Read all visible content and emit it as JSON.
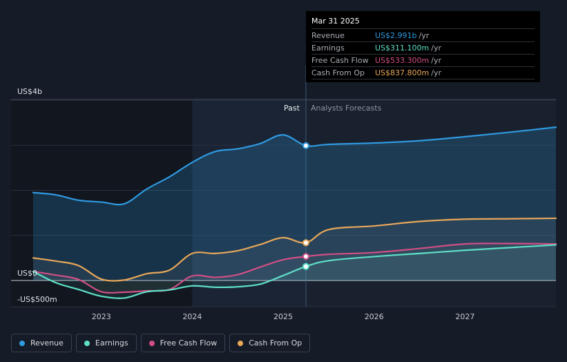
{
  "tooltip": {
    "date": "Mar 31 2025",
    "rows": [
      {
        "label": "Revenue",
        "value": "US$2.991b",
        "unit": "/yr",
        "color": "#2f9ae0"
      },
      {
        "label": "Earnings",
        "value": "US$311.100m",
        "unit": "/yr",
        "color": "#5fe0c8"
      },
      {
        "label": "Free Cash Flow",
        "value": "US$533.300m",
        "unit": "/yr",
        "color": "#d14f86"
      },
      {
        "label": "Cash From Op",
        "value": "US$837.800m",
        "unit": "/yr",
        "color": "#e8a75a"
      }
    ]
  },
  "legend": [
    {
      "label": "Revenue",
      "color": "#2f9ae0"
    },
    {
      "label": "Earnings",
      "color": "#5fe0c8"
    },
    {
      "label": "Free Cash Flow",
      "color": "#d14f86"
    },
    {
      "label": "Cash From Op",
      "color": "#e8a75a"
    }
  ],
  "chart_data": {
    "type": "line",
    "title": "",
    "xlabel": "",
    "ylabel": "",
    "ylim": [
      -500,
      4000
    ],
    "xlim": [
      2022.25,
      2028.0
    ],
    "y_tick_labels": [
      {
        "value": 4000,
        "label": "US$4b"
      },
      {
        "value": 0,
        "label": "US$0"
      },
      {
        "value": -500,
        "label": "-US$500m"
      }
    ],
    "x_ticks": [
      {
        "value": 2023,
        "label": "2023"
      },
      {
        "value": 2024,
        "label": "2024"
      },
      {
        "value": 2025,
        "label": "2025"
      },
      {
        "value": 2026,
        "label": "2026"
      },
      {
        "value": 2027,
        "label": "2027"
      }
    ],
    "divider_x": 2025.25,
    "past_label": "Past",
    "forecast_label": "Analysts Forecasts",
    "series": [
      {
        "name": "Revenue",
        "color": "#2f9ae0",
        "x": [
          2022.25,
          2022.5,
          2022.75,
          2023.0,
          2023.25,
          2023.5,
          2023.75,
          2024.0,
          2024.25,
          2024.5,
          2024.75,
          2025.0,
          2025.25,
          2025.5,
          2026.0,
          2026.5,
          2027.0,
          2027.5,
          2028.0
        ],
        "y": [
          1950,
          1900,
          1780,
          1740,
          1700,
          2030,
          2300,
          2620,
          2860,
          2920,
          3040,
          3230,
          2991,
          3020,
          3050,
          3100,
          3190,
          3290,
          3400
        ]
      },
      {
        "name": "Earnings",
        "color": "#5fe0c8",
        "x": [
          2022.25,
          2022.5,
          2022.75,
          2023.0,
          2023.25,
          2023.5,
          2023.75,
          2024.0,
          2024.25,
          2024.5,
          2024.75,
          2025.0,
          2025.25,
          2025.5,
          2026.0,
          2026.5,
          2027.0,
          2027.5,
          2028.0
        ],
        "y": [
          200,
          -50,
          -200,
          -350,
          -390,
          -250,
          -210,
          -120,
          -150,
          -140,
          -80,
          110,
          311.1,
          440,
          530,
          600,
          670,
          730,
          790
        ]
      },
      {
        "name": "Free Cash Flow",
        "color": "#d14f86",
        "x": [
          2022.25,
          2022.5,
          2022.75,
          2023.0,
          2023.25,
          2023.5,
          2023.75,
          2024.0,
          2024.25,
          2024.5,
          2024.75,
          2025.0,
          2025.25,
          2025.5,
          2026.0,
          2026.5,
          2027.0,
          2027.5,
          2028.0
        ],
        "y": [
          200,
          120,
          20,
          -250,
          -260,
          -230,
          -200,
          100,
          70,
          130,
          300,
          460,
          533.3,
          580,
          620,
          710,
          810,
          820,
          810
        ]
      },
      {
        "name": "Cash From Op",
        "color": "#e8a75a",
        "x": [
          2022.25,
          2022.5,
          2022.75,
          2023.0,
          2023.25,
          2023.5,
          2023.75,
          2024.0,
          2024.25,
          2024.5,
          2024.75,
          2025.0,
          2025.25,
          2025.5,
          2026.0,
          2026.5,
          2027.0,
          2027.5,
          2028.0
        ],
        "y": [
          500,
          430,
          330,
          30,
          10,
          150,
          230,
          600,
          600,
          660,
          800,
          950,
          837.8,
          1130,
          1210,
          1310,
          1360,
          1370,
          1380
        ]
      }
    ],
    "markers": [
      {
        "series": "Revenue",
        "x": 2025.25,
        "y": 2991
      },
      {
        "series": "Earnings",
        "x": 2025.25,
        "y": 311.1
      },
      {
        "series": "Free Cash Flow",
        "x": 2025.25,
        "y": 533.3
      },
      {
        "series": "Cash From Op",
        "x": 2025.25,
        "y": 837.8
      }
    ]
  }
}
